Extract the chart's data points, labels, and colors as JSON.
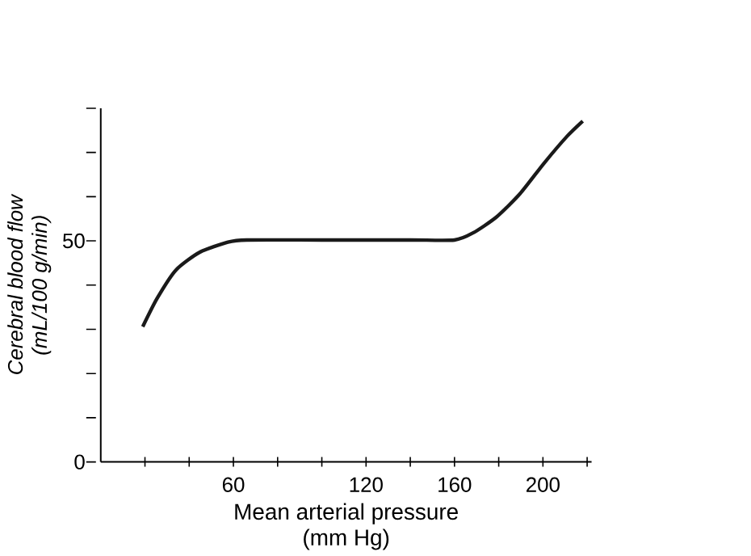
{
  "chart_data": {
    "type": "line",
    "xlabel": "Mean arterial pressure\n(mm Hg)",
    "ylabel": "Cerebral blood flow\n(mL/100 g/min)",
    "color": "#1a1a1a",
    "x": [
      19,
      25.5,
      34,
      44.7,
      57.5,
      66,
      100,
      140,
      160,
      168.4,
      179,
      189.7,
      200.4,
      211,
      218
    ],
    "values": [
      30.6,
      37,
      43.4,
      47.4,
      49.7,
      50.2,
      50.2,
      50.2,
      50.2,
      51.8,
      55.4,
      60.7,
      67.5,
      73.7,
      77.1
    ],
    "xlim": [
      0,
      222
    ],
    "ylim": [
      0,
      80
    ],
    "xticks": [
      {
        "value": 20,
        "label": null
      },
      {
        "value": 40,
        "label": null
      },
      60,
      {
        "value": 80,
        "label": null
      },
      {
        "value": 100,
        "label": null
      },
      120,
      {
        "value": 140,
        "label": null
      },
      160,
      {
        "value": 180,
        "label": null
      },
      200,
      {
        "value": 220,
        "label": null
      }
    ],
    "yticks": [
      0,
      {
        "value": 10,
        "label": null
      },
      {
        "value": 20,
        "label": null
      },
      {
        "value": 30,
        "label": null
      },
      {
        "value": 40,
        "label": null
      },
      50,
      {
        "value": 60,
        "label": null
      },
      {
        "value": 70,
        "label": null
      },
      {
        "value": 80,
        "label": null
      }
    ],
    "grid": false,
    "marker": "none",
    "line_style": "solid"
  }
}
